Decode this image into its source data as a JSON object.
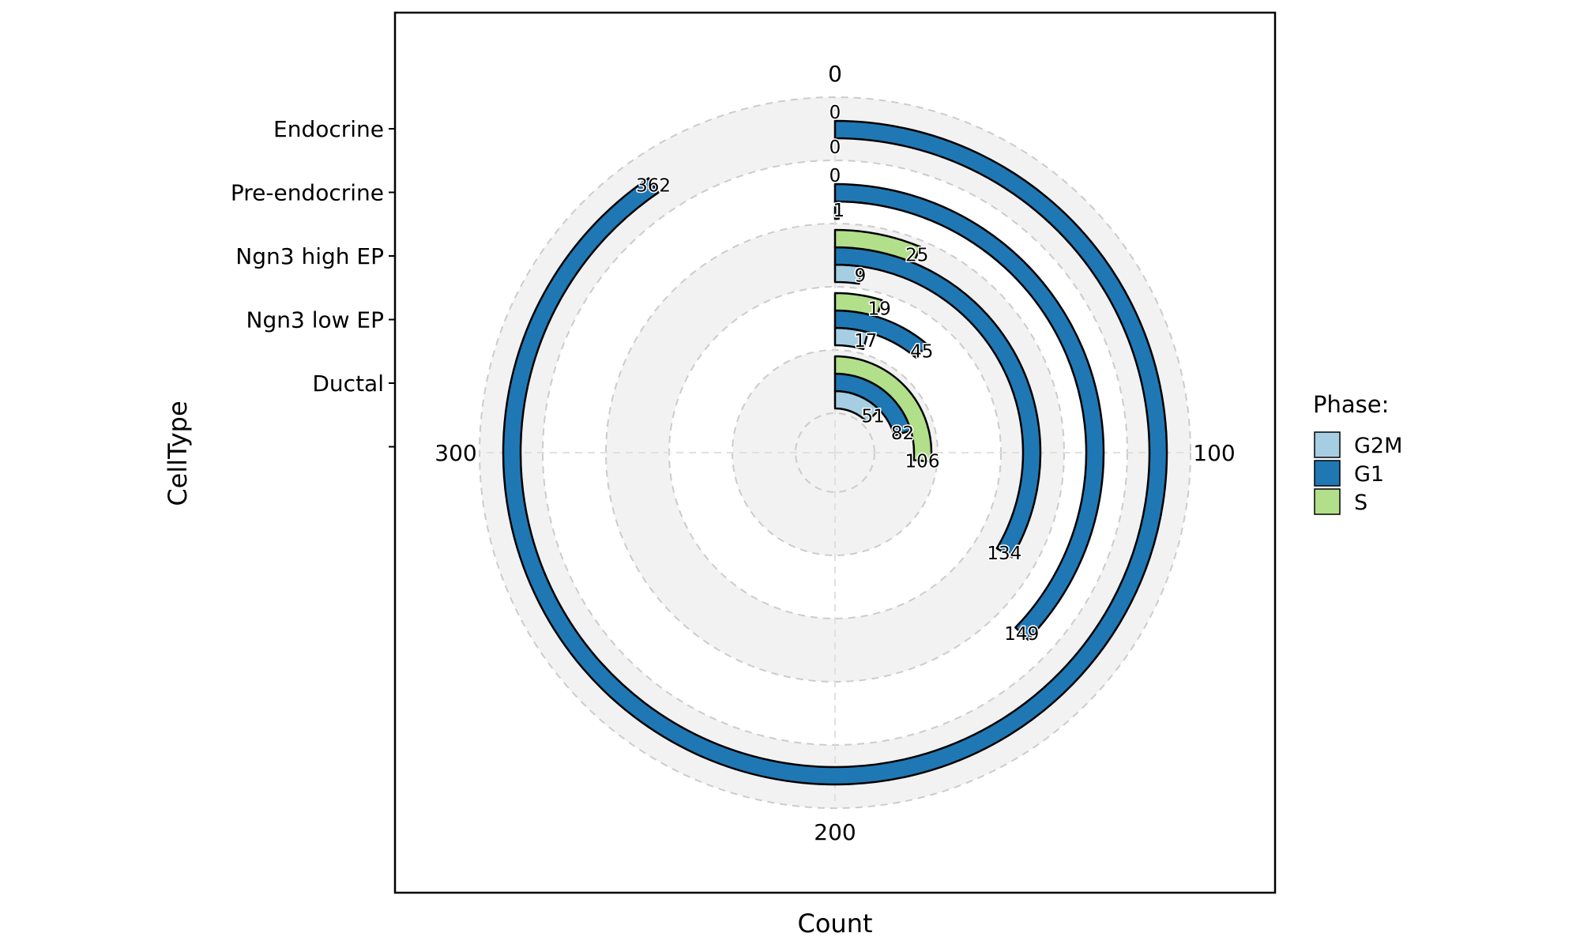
{
  "chart_data": {
    "type": "bar",
    "subtype": "radial-stacked-bar",
    "xlabel": "Count",
    "ylabel": "CellType",
    "categories": [
      "Ductal",
      "Ngn3 low EP",
      "Ngn3 high EP",
      "Pre-endocrine",
      "Endocrine"
    ],
    "category_labels_top_to_bottom": [
      "Endocrine",
      "Pre-endocrine",
      "Ngn3 high EP",
      "Ngn3 low EP",
      "Ductal"
    ],
    "angular_ticks": [
      "0",
      "100",
      "200",
      "300"
    ],
    "angular_max": 400,
    "series": [
      {
        "name": "G2M",
        "color": "#A6CEE3",
        "values": [
          51,
          17,
          9,
          1,
          0
        ],
        "labels": [
          "51",
          "17",
          "9",
          "1",
          "0"
        ]
      },
      {
        "name": "G1",
        "color": "#1F78B4",
        "values": [
          82,
          45,
          134,
          149,
          362
        ],
        "labels": [
          "82",
          "45",
          "134",
          "149",
          "362"
        ]
      },
      {
        "name": "S",
        "color": "#B2DF8A",
        "values": [
          106,
          19,
          25,
          0,
          0
        ],
        "labels": [
          "106",
          "19",
          "25",
          "0",
          "0"
        ]
      }
    ],
    "legend": {
      "title": "Phase:",
      "position": "right"
    },
    "grid": true
  }
}
